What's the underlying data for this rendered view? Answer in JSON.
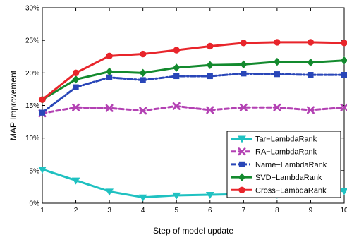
{
  "chart_data": {
    "type": "line",
    "xlabel": "Step of model update",
    "ylabel": "MAP Improvement",
    "xlim": [
      1,
      10
    ],
    "ylim": [
      0,
      30
    ],
    "x": [
      1,
      2,
      3,
      4,
      5,
      6,
      7,
      8,
      9,
      10
    ],
    "x_ticks": [
      "1",
      "2",
      "3",
      "4",
      "5",
      "6",
      "7",
      "8",
      "9",
      "10"
    ],
    "y_ticks": [
      0,
      5,
      10,
      15,
      20,
      25,
      30
    ],
    "y_tick_labels": [
      "0%",
      "5%",
      "10%",
      "15%",
      "20%",
      "25%",
      "30%"
    ],
    "grid": false,
    "legend_position": "lower-right",
    "series": [
      {
        "name": "Tar−LambdaRank",
        "color": "#1fc1c1",
        "marker": "triangle-down",
        "line_style": "solid",
        "values": [
          5.2,
          3.5,
          1.8,
          0.9,
          1.2,
          1.3,
          1.4,
          1.3,
          1.8,
          1.9
        ]
      },
      {
        "name": "RA−LambdaRank",
        "color": "#b341b3",
        "marker": "x",
        "line_style": "dashed",
        "values": [
          13.8,
          14.7,
          14.6,
          14.2,
          14.9,
          14.3,
          14.7,
          14.7,
          14.3,
          14.7
        ]
      },
      {
        "name": "Name−LambdaRank",
        "color": "#2946b8",
        "marker": "square",
        "line_style": "dash-dot",
        "values": [
          13.9,
          17.8,
          19.3,
          18.9,
          19.5,
          19.5,
          19.9,
          19.8,
          19.7,
          19.7
        ]
      },
      {
        "name": "SVD−LambdaRank",
        "color": "#138a2e",
        "marker": "diamond",
        "line_style": "solid",
        "values": [
          15.9,
          19.0,
          20.2,
          20.0,
          20.8,
          21.2,
          21.3,
          21.7,
          21.6,
          21.9
        ]
      },
      {
        "name": "Cross−LambdaRank",
        "color": "#e8252b",
        "marker": "circle",
        "line_style": "solid",
        "values": [
          15.9,
          20.0,
          22.6,
          22.9,
          23.5,
          24.1,
          24.6,
          24.7,
          24.7,
          24.6
        ]
      }
    ]
  }
}
